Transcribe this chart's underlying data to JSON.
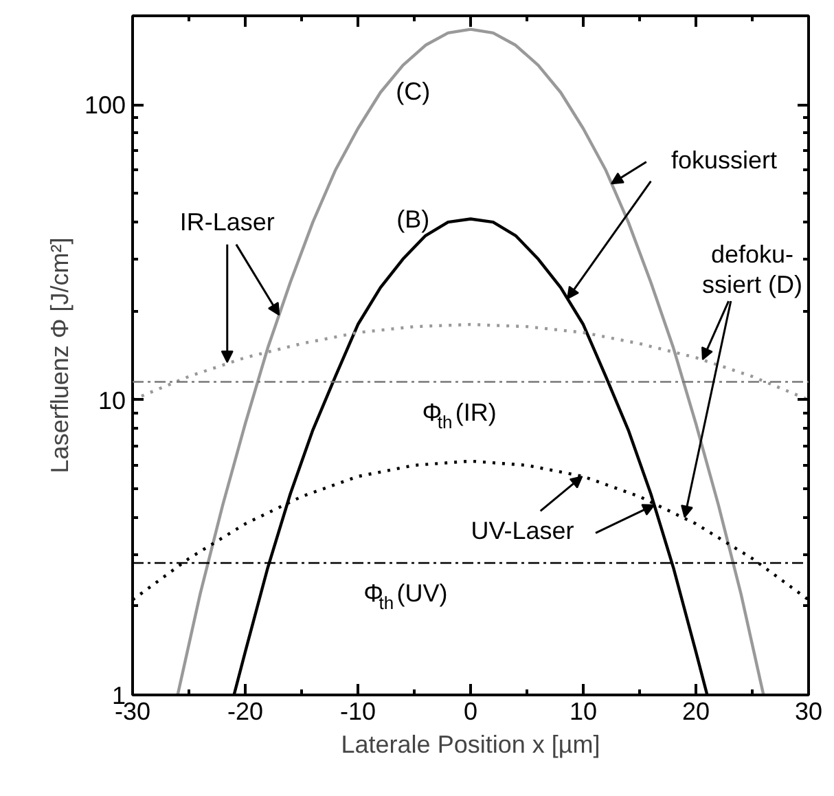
{
  "chart_data": {
    "type": "line",
    "xlabel": "Laterale Position x [µm]",
    "ylabel": "Laserfluenz Φ [J/cm²]",
    "log": "y",
    "xlim": [
      -30,
      30
    ],
    "ylim": [
      1,
      200
    ],
    "xticks": [
      -30,
      -20,
      -10,
      0,
      10,
      20,
      30
    ],
    "yticks": [
      1,
      10,
      100
    ],
    "grid": false,
    "series": [
      {
        "color": "#999999",
        "line_style": "solid",
        "x": [
          -26,
          -24,
          -22,
          -20,
          -18,
          -16,
          -14,
          -12,
          -10,
          -8,
          -6,
          -4,
          -2,
          0,
          2,
          4,
          6,
          8,
          10,
          12,
          14,
          16,
          18,
          20,
          22,
          24,
          26
        ],
        "values": [
          1,
          2.2,
          4.4,
          8.3,
          15,
          25,
          40,
          60,
          83,
          110,
          136,
          159,
          175,
          180,
          175,
          159,
          136,
          110,
          83,
          60,
          40,
          25,
          15,
          8.3,
          4.4,
          2.2,
          1
        ]
      },
      {
        "color": "#000000",
        "line_style": "solid",
        "x": [
          -21,
          -20,
          -18,
          -16,
          -14,
          -12,
          -10,
          -8,
          -6,
          -4,
          -2,
          0,
          2,
          4,
          6,
          8,
          10,
          12,
          14,
          16,
          18,
          20,
          21
        ],
        "values": [
          1,
          1.4,
          2.7,
          4.8,
          7.9,
          12,
          18,
          24,
          30,
          36,
          40,
          41,
          40,
          36,
          30,
          24,
          18,
          12,
          7.9,
          4.8,
          2.7,
          1.4,
          1
        ]
      },
      {
        "color": "#999999",
        "line_style": "dotted",
        "x": [
          -30,
          -25,
          -20,
          -15,
          -10,
          -5,
          0,
          5,
          10,
          15,
          20,
          25,
          30
        ],
        "values": [
          10,
          12,
          13.9,
          15.5,
          16.9,
          17.7,
          18,
          17.7,
          16.9,
          15.5,
          13.9,
          12,
          10
        ]
      },
      {
        "color": "#000000",
        "line_style": "dotted",
        "x": [
          -30,
          -25,
          -20,
          -15,
          -10,
          -5,
          0,
          5,
          10,
          15,
          20,
          25,
          30
        ],
        "values": [
          2.1,
          2.9,
          3.8,
          4.7,
          5.5,
          6,
          6.2,
          6,
          5.5,
          4.7,
          3.8,
          2.9,
          2.1
        ]
      }
    ],
    "ref_lines": [
      {
        "axis": "y",
        "value": 11.5,
        "label": "Φ$_{th}$(IR)",
        "color": "#777777",
        "line_style": "dashdot"
      },
      {
        "axis": "y",
        "value": 2.8,
        "label": "Φ$_{th}$(UV)",
        "color": "#000000",
        "line_style": "dashdot"
      }
    ],
    "annotations": [
      "(C)",
      "(B)",
      {
        "text": "fokussiert",
        "x": 12.5,
        "y": 54
      },
      {
        "text": "IR-Laser",
        "x": -21.6,
        "y": 13.4
      },
      {
        "text": "defoku-\nssiert (D)",
        "x": 20.6,
        "y": 13.7
      },
      {
        "text": "UV-Laser",
        "x": 9.9,
        "y": 5.5
      }
    ]
  }
}
